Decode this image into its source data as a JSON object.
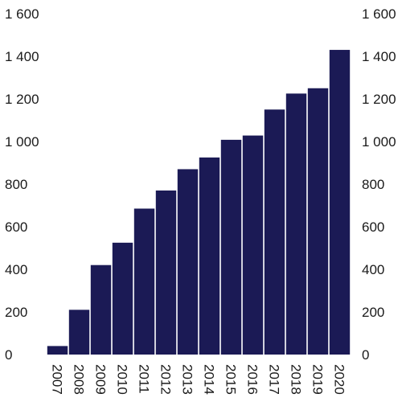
{
  "colors": {
    "bar": "#1b1a55",
    "background": "#ffffff",
    "text": "#1a1a1a"
  },
  "chart_data": {
    "type": "bar",
    "categories": [
      "2007",
      "2008",
      "2009",
      "2010",
      "2011",
      "2012",
      "2013",
      "2014",
      "2015",
      "2016",
      "2017",
      "2018",
      "2019",
      "2020"
    ],
    "values": [
      40,
      210,
      420,
      525,
      685,
      770,
      870,
      925,
      1008,
      1028,
      1150,
      1225,
      1250,
      1430
    ],
    "ylim": [
      0,
      1600
    ],
    "yticks": [
      0,
      200,
      400,
      600,
      800,
      1000,
      1200,
      1400,
      1600
    ],
    "ytick_labels": [
      "0",
      "200",
      "400",
      "600",
      "800",
      "1 000",
      "1 200",
      "1 400",
      "1 600"
    ],
    "y_axis_right": true,
    "grid": false,
    "title": "",
    "xlabel": "",
    "ylabel": ""
  }
}
